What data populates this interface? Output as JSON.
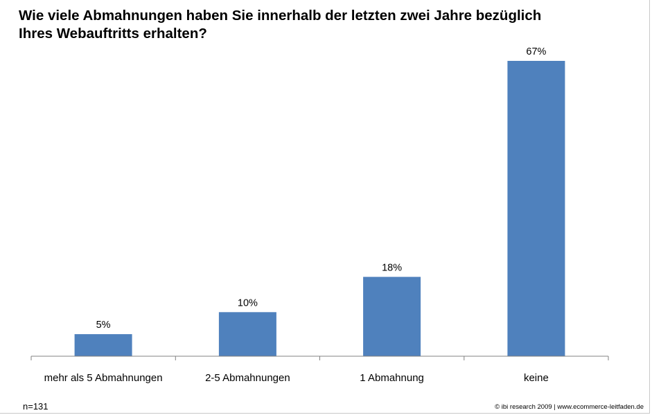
{
  "chart_data": {
    "type": "bar",
    "title_lines": [
      "Wie viele Abmahnungen haben Sie innerhalb der letzten zwei Jahre bezüglich",
      "Ihres Webauftritts erhalten?"
    ],
    "categories": [
      "mehr als 5 Abmahnungen",
      "2-5 Abmahnungen",
      "1 Abmahnung",
      "keine"
    ],
    "values": [
      5,
      10,
      18,
      67
    ],
    "data_labels": [
      "5%",
      "10%",
      "18%",
      "67%"
    ],
    "unit": "%",
    "bar_color": "#4F81BD",
    "ylim": [
      0,
      67
    ],
    "grid": false,
    "legend": "none"
  },
  "footer": {
    "sample_size": "n=131",
    "source": "© ibi research 2009 | www.ecommerce-leitfaden.de"
  }
}
